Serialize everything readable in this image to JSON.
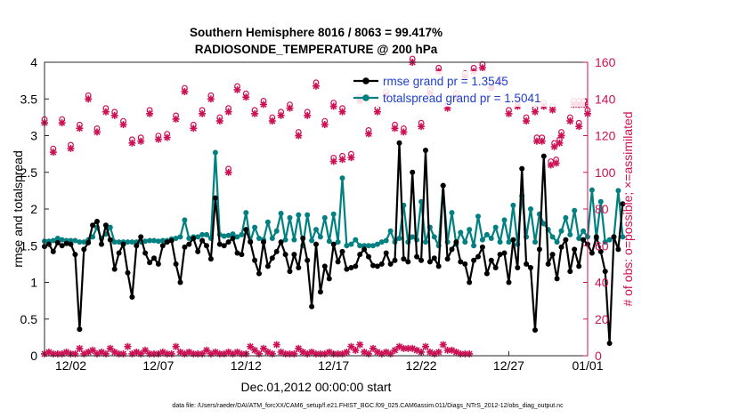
{
  "chart_data": {
    "type": "line",
    "title_line1": "Southern Hemisphere 8016 / 8063 = 99.417%",
    "title_line2": "RADIOSONDE_TEMPERATURE @ 200 hPa",
    "xlabel": "Dec.01,2012 00:00:00 start",
    "ylabel_left": "rmse and totalspread",
    "ylabel_right": "# of obs: o=possible; ×=assimilated",
    "footer": "data file: /Users/raeder/DAI/ATM_forcXX/CAM6_setup/f.e21.FHIST_BGC.f09_025.CAM6assim.011/Diags_NTrS_2012-12/obs_diag_output.nc",
    "xlim": [
      0.5,
      31.5
    ],
    "ylim_left": [
      0,
      4
    ],
    "ylim_right": [
      0,
      160
    ],
    "x_ticks": [
      {
        "x": 2,
        "label": "12/02"
      },
      {
        "x": 7,
        "label": "12/07"
      },
      {
        "x": 12,
        "label": "12/12"
      },
      {
        "x": 17,
        "label": "12/17"
      },
      {
        "x": 22,
        "label": "12/22"
      },
      {
        "x": 27,
        "label": "12/27"
      },
      {
        "x": 32,
        "label": "01/01"
      }
    ],
    "y_ticks_left": [
      0,
      0.5,
      1,
      1.5,
      2,
      2.5,
      3,
      3.5,
      4
    ],
    "y_tick_labels_left": [
      "0",
      "0.5",
      "1",
      "1.5",
      "2",
      "2.5",
      "3",
      "3.5",
      "4"
    ],
    "y_ticks_right": [
      0,
      20,
      40,
      60,
      80,
      100,
      120,
      140,
      160
    ],
    "y_tick_labels_right": [
      "0",
      "20",
      "40",
      "60",
      "80",
      "100",
      "120",
      "140",
      "160"
    ],
    "legend": [
      {
        "name": "rmse grand pr = 1.3545",
        "color": "#000000"
      },
      {
        "name": "totalspread grand pr = 1.5041",
        "color": "#008080"
      }
    ],
    "legend_position": "top-right",
    "colors": {
      "rmse": "#000000",
      "spread": "#008080",
      "obs": "#cc1155",
      "axis_right": "#cc1155"
    },
    "time_step": 0.25,
    "time_start": 0.5,
    "series": [
      {
        "name": "rmse",
        "values": [
          1.49,
          1.52,
          1.42,
          1.54,
          1.5,
          1.53,
          1.52,
          1.38,
          0.36,
          1.45,
          1.54,
          1.78,
          1.83,
          1.52,
          1.78,
          1.58,
          1.18,
          1.4,
          1.52,
          1.13,
          0.8,
          1.5,
          1.62,
          1.4,
          1.27,
          1.33,
          1.25,
          1.5,
          1.55,
          1.57,
          1.25,
          1.0,
          1.48,
          1.52,
          1.6,
          1.42,
          1.57,
          1.5,
          1.32,
          2.15,
          1.52,
          1.5,
          1.55,
          1.6,
          1.4,
          1.38,
          1.72,
          1.55,
          1.3,
          1.12,
          1.55,
          1.22,
          1.33,
          1.42,
          1.55,
          1.38,
          1.15,
          1.38,
          1.2,
          1.6,
          1.3,
          0.67,
          1.52,
          0.87,
          1.22,
          1.05,
          1.52,
          1.28,
          1.42,
          1.18,
          1.2,
          1.22,
          1.38,
          1.45,
          1.35,
          1.23,
          1.22,
          1.25,
          1.4,
          1.25,
          1.3,
          2.9,
          1.32,
          1.28,
          2.5,
          1.35,
          1.3,
          2.8,
          1.28,
          1.33,
          1.22,
          2.32,
          1.32,
          1.45,
          1.55,
          1.28,
          1.25,
          1.0,
          1.3,
          1.35,
          1.48,
          1.12,
          1.3,
          1.2,
          1.38,
          1.4,
          1.0,
          1.58,
          1.2,
          2.55,
          1.25,
          1.2,
          0.35,
          1.45,
          2.72,
          1.25,
          1.38,
          1.05,
          1.48,
          1.58,
          1.15,
          1.45,
          1.22,
          1.58,
          1.52,
          1.4,
          1.62,
          1.42,
          1.15,
          0.17,
          1.62,
          1.45,
          2.07
        ]
      },
      {
        "name": "totalspread",
        "values": [
          1.56,
          1.56,
          1.57,
          1.6,
          1.58,
          1.57,
          1.57,
          1.57,
          1.55,
          1.55,
          1.58,
          1.62,
          1.75,
          1.6,
          1.66,
          1.75,
          1.55,
          1.55,
          1.55,
          1.55,
          1.55,
          1.55,
          1.55,
          1.56,
          1.57,
          1.57,
          1.56,
          1.57,
          1.57,
          1.59,
          1.6,
          1.62,
          1.85,
          1.6,
          1.62,
          1.62,
          1.65,
          1.65,
          1.6,
          2.77,
          1.65,
          1.63,
          1.64,
          1.66,
          1.62,
          1.65,
          1.95,
          1.56,
          1.75,
          1.6,
          1.58,
          1.82,
          1.6,
          1.7,
          1.94,
          1.58,
          1.88,
          1.58,
          1.92,
          1.5,
          1.92,
          1.57,
          1.72,
          1.62,
          1.88,
          1.56,
          1.93,
          1.55,
          2.42,
          1.5,
          1.52,
          1.58,
          1.5,
          1.5,
          1.5,
          1.5,
          1.52,
          1.55,
          1.57,
          1.7,
          1.55,
          1.6,
          2.05,
          1.55,
          1.62,
          1.58,
          2.1,
          1.55,
          1.75,
          1.62,
          1.5,
          2.32,
          1.55,
          1.95,
          1.52,
          1.68,
          1.55,
          1.72,
          1.5,
          1.9,
          1.58,
          1.65,
          1.6,
          1.75,
          1.55,
          1.85,
          1.55,
          2.05,
          1.52,
          2.18,
          1.62,
          2.0,
          1.55,
          1.93,
          1.8,
          1.72,
          1.62,
          1.55,
          1.7,
          1.88,
          1.65,
          1.98,
          1.6,
          1.7,
          1.62,
          2.26,
          1.6,
          2.1,
          1.55,
          1.58,
          1.62,
          2.25,
          1.62
        ]
      },
      {
        "name": "obs_possible",
        "values": [
          127,
          111,
          127,
          113,
          124,
          140,
          122,
          133,
          131,
          126,
          116,
          117,
          132,
          118,
          119,
          129,
          144,
          124,
          132,
          140,
          128,
          133,
          100,
          145,
          141,
          132,
          137,
          128,
          131,
          135,
          120,
          131,
          147,
          126,
          136,
          106,
          133,
          107,
          108,
          139,
          121,
          133,
          142,
          124,
          122,
          160,
          125,
          143,
          155,
          135,
          141,
          152,
          155,
          157,
          146,
          149,
          132,
          136,
          128,
          133,
          136,
          134,
          120,
          128,
          125,
          132,
          117,
          117,
          114,
          116,
          104,
          105,
          137,
          137,
          137
        ],
        "x": [
          0.5,
          1.0,
          1.5,
          2.0,
          2.5,
          3.0,
          3.5,
          4.0,
          4.5,
          5.0,
          5.5,
          6.0,
          6.5,
          7.0,
          7.5,
          8.0,
          8.5,
          9.0,
          9.5,
          10.0,
          10.5,
          11.0,
          11.0,
          11.5,
          12.0,
          12.5,
          13.0,
          13.5,
          14.0,
          14.5,
          15.0,
          15.5,
          16.0,
          16.5,
          17.0,
          17.0,
          17.5,
          17.5,
          18.0,
          18.5,
          19.0,
          19.5,
          20.0,
          20.5,
          21.0,
          21.5,
          22.0,
          22.5,
          23.0,
          23.5,
          24.0,
          24.5,
          25.0,
          25.5,
          26.0,
          26.5,
          27.0,
          27.5,
          28.0,
          28.5,
          29.0,
          29.5,
          30.0,
          30.5,
          31.0,
          31.5,
          28.6,
          28.9,
          29.6,
          29.9,
          29.4,
          29.7,
          30.7,
          31.0,
          31.3
        ]
      },
      {
        "name": "obs_assimilated_low",
        "values": [
          1,
          2,
          1,
          1,
          1,
          2,
          1,
          1,
          4,
          1,
          2,
          3,
          1,
          2,
          1,
          4,
          2,
          1,
          1,
          5,
          1,
          2,
          1,
          3,
          1,
          1,
          1,
          2,
          1,
          1,
          5,
          2,
          1,
          2,
          1,
          1,
          1,
          3,
          1,
          2,
          1,
          1,
          2,
          1,
          2,
          1,
          1,
          5,
          3,
          1,
          4,
          2,
          1,
          6,
          2,
          1,
          1,
          1,
          4,
          2,
          1,
          2,
          1,
          1,
          1,
          2,
          1,
          1,
          1,
          2,
          5,
          3,
          6,
          2,
          1,
          4,
          2,
          1,
          2,
          1,
          3,
          5,
          4,
          4,
          4,
          3,
          2,
          5,
          2,
          1,
          2,
          6,
          3,
          3,
          2,
          1,
          1,
          1
        ]
      }
    ]
  }
}
